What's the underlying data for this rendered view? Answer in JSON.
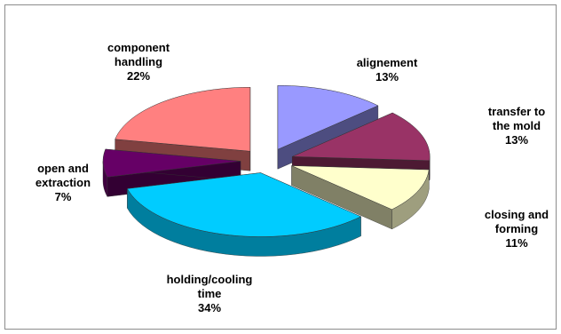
{
  "chart_data": {
    "type": "pie",
    "title": "",
    "three_d": true,
    "exploded": true,
    "legend": "none",
    "slices": [
      {
        "label_lines": [
          "alignement"
        ],
        "pct_text": "13%",
        "value": 13,
        "color": "#9999ff"
      },
      {
        "label_lines": [
          "transfer to",
          "the mold"
        ],
        "pct_text": "13%",
        "value": 13,
        "color": "#993366"
      },
      {
        "label_lines": [
          "closing and",
          "forming"
        ],
        "pct_text": "11%",
        "value": 11,
        "color": "#ffffcc"
      },
      {
        "label_lines": [
          "holding/cooling",
          "time"
        ],
        "pct_text": "34%",
        "value": 34,
        "color": "#00ccff"
      },
      {
        "label_lines": [
          "open and",
          "extraction"
        ],
        "pct_text": "7%",
        "value": 7,
        "color": "#660066"
      },
      {
        "label_lines": [
          "component",
          "handling"
        ],
        "pct_text": "22%",
        "value": 22,
        "color": "#ff8080"
      }
    ]
  }
}
